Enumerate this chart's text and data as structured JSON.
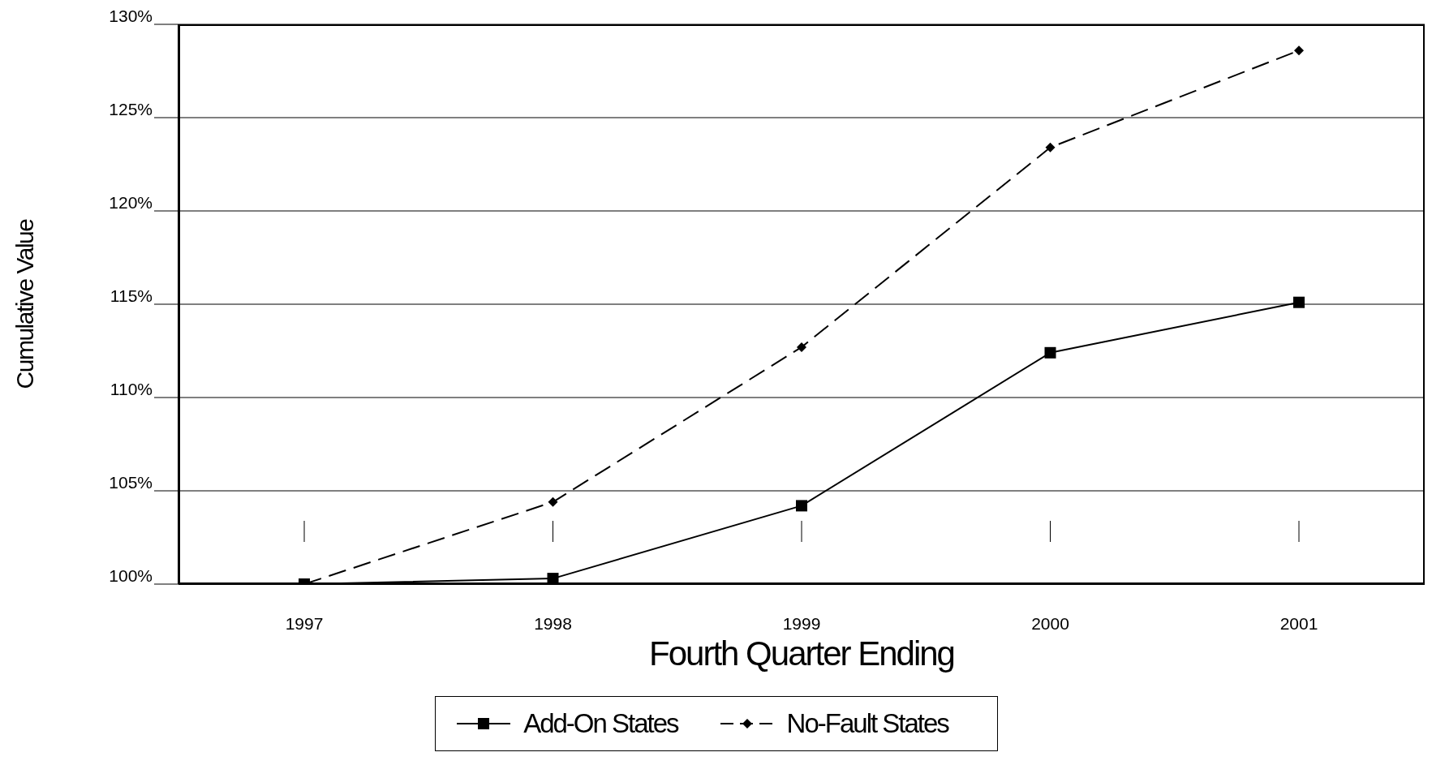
{
  "chart_data": {
    "type": "line",
    "xlabel": "Fourth Quarter Ending",
    "ylabel": "Cumulative Value",
    "categories": [
      "1997",
      "1998",
      "1999",
      "2000",
      "2001"
    ],
    "series": [
      {
        "name": "Add-On States",
        "color": "#000000",
        "values": [
          100,
          100.3,
          104.2,
          112.4,
          115.1
        ],
        "marker": "square",
        "line_style": "solid"
      },
      {
        "name": "No-Fault States",
        "color": "#000000",
        "values": [
          100,
          104.4,
          112.7,
          123.4,
          128.6
        ],
        "marker": "diamond",
        "line_style": "dashed"
      }
    ],
    "ylim": [
      100,
      130
    ],
    "yticks": [
      {
        "value": 100,
        "label": "100%"
      },
      {
        "value": 105,
        "label": "105%"
      },
      {
        "value": 110,
        "label": "110%"
      },
      {
        "value": 115,
        "label": "115%"
      },
      {
        "value": 120,
        "label": "120%"
      },
      {
        "value": 125,
        "label": "125%"
      },
      {
        "value": 130,
        "label": "130%"
      }
    ],
    "grid": "y",
    "legend": "bottom"
  }
}
